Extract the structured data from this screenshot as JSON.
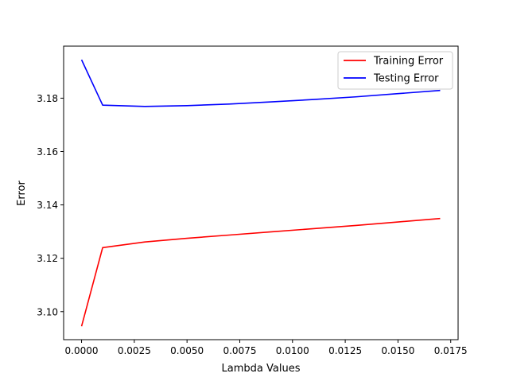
{
  "chart_data": {
    "type": "line",
    "title": "",
    "xlabel": "Lambda Values",
    "ylabel": "Error",
    "xlim": [
      -0.00085,
      0.01785
    ],
    "ylim": [
      3.0895,
      3.1995
    ],
    "x_ticks": [
      0.0,
      0.0025,
      0.005,
      0.0075,
      0.01,
      0.0125,
      0.015,
      0.0175
    ],
    "x_tick_labels": [
      "0.0000",
      "0.0025",
      "0.0050",
      "0.0075",
      "0.0100",
      "0.0125",
      "0.0150",
      "0.0175"
    ],
    "y_ticks": [
      3.1,
      3.12,
      3.14,
      3.16,
      3.18
    ],
    "y_tick_labels": [
      "3.10",
      "3.12",
      "3.14",
      "3.16",
      "3.18"
    ],
    "grid": false,
    "legend_position": "upper-right",
    "x": [
      0.0,
      0.001,
      0.003,
      0.005,
      0.007,
      0.009,
      0.011,
      0.013,
      0.015,
      0.017
    ],
    "series": [
      {
        "name": "Training Error",
        "color": "#ff0000",
        "values": [
          3.0945,
          3.124,
          3.1261,
          3.1275,
          3.1287,
          3.1299,
          3.1311,
          3.1323,
          3.1336,
          3.1349
        ]
      },
      {
        "name": "Testing Error",
        "color": "#0000ff",
        "values": [
          3.1944,
          3.1774,
          3.1769,
          3.1772,
          3.1778,
          3.1786,
          3.1795,
          3.1805,
          3.1817,
          3.1829
        ]
      }
    ]
  }
}
